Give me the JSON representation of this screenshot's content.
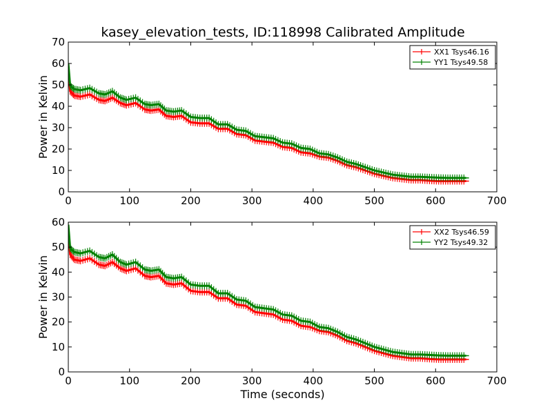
{
  "title": "kasey_elevation_tests, ID:118998 Calibrated Amplitude",
  "chart_data": [
    {
      "type": "line",
      "ylabel": "Power in Kelvin",
      "xlabel": "",
      "xlim": [
        0,
        700
      ],
      "ylim": [
        0,
        70
      ],
      "xticks": [
        "0",
        "100",
        "200",
        "300",
        "400",
        "500",
        "600",
        "700"
      ],
      "yticks": [
        "0",
        "10",
        "20",
        "30",
        "40",
        "50",
        "60",
        "70"
      ],
      "legend_position": "top-right",
      "series": [
        {
          "name": "XX1 Tsys46.16",
          "color": "#ff0000",
          "x": [
            0,
            3,
            10,
            20,
            35,
            50,
            60,
            72,
            85,
            95,
            110,
            125,
            135,
            148,
            160,
            172,
            185,
            200,
            215,
            230,
            245,
            260,
            275,
            290,
            305,
            320,
            335,
            350,
            365,
            380,
            395,
            410,
            425,
            440,
            455,
            470,
            485,
            500,
            515,
            530,
            545,
            560,
            575,
            590,
            605,
            620,
            635,
            650
          ],
          "y": [
            57,
            47,
            45,
            44.5,
            45.5,
            43,
            42.5,
            44,
            41.5,
            40.5,
            41.5,
            38.5,
            38,
            38.5,
            35.5,
            35,
            35.5,
            32.5,
            32,
            32,
            29.5,
            29.5,
            27,
            26.5,
            24,
            23.5,
            23,
            21,
            20.5,
            18.5,
            18,
            16.5,
            16,
            14.5,
            12.5,
            11.5,
            10,
            8.5,
            7.5,
            6.5,
            6,
            5.5,
            5.5,
            5.2,
            5,
            5,
            5,
            5
          ]
        },
        {
          "name": "YY1 Tsys49.58",
          "color": "#008000",
          "x": [
            0,
            3,
            10,
            20,
            35,
            50,
            60,
            72,
            85,
            95,
            110,
            125,
            135,
            148,
            160,
            172,
            185,
            200,
            215,
            230,
            245,
            260,
            275,
            290,
            305,
            320,
            335,
            350,
            365,
            380,
            395,
            410,
            425,
            440,
            455,
            470,
            485,
            500,
            515,
            530,
            545,
            560,
            575,
            590,
            605,
            620,
            635,
            650
          ],
          "y": [
            60,
            49.5,
            48,
            47.5,
            48.5,
            46,
            45.5,
            47,
            44,
            43,
            44,
            41,
            40.5,
            41,
            38,
            37.5,
            38,
            35,
            34.5,
            34.5,
            31.5,
            31.5,
            29,
            28.5,
            26,
            25.5,
            25,
            23,
            22.5,
            20.5,
            20,
            18,
            17.5,
            16,
            14,
            13,
            11.5,
            10,
            9,
            8,
            7.5,
            7,
            7,
            6.8,
            6.6,
            6.5,
            6.5,
            6.5
          ]
        }
      ]
    },
    {
      "type": "line",
      "ylabel": "Power in Kelvin",
      "xlabel": "Time (seconds)",
      "xlim": [
        0,
        700
      ],
      "ylim": [
        0,
        60
      ],
      "xticks": [
        "0",
        "100",
        "200",
        "300",
        "400",
        "500",
        "600",
        "700"
      ],
      "yticks": [
        "0",
        "10",
        "20",
        "30",
        "40",
        "50",
        "60"
      ],
      "legend_position": "top-right",
      "series": [
        {
          "name": "XX2 Tsys46.59",
          "color": "#ff0000",
          "x": [
            0,
            3,
            10,
            20,
            35,
            50,
            60,
            72,
            85,
            95,
            110,
            125,
            135,
            148,
            160,
            172,
            185,
            200,
            215,
            230,
            245,
            260,
            275,
            290,
            305,
            320,
            335,
            350,
            365,
            380,
            395,
            410,
            425,
            440,
            455,
            470,
            485,
            500,
            515,
            530,
            545,
            560,
            575,
            590,
            605,
            620,
            635,
            650
          ],
          "y": [
            56,
            47,
            45,
            44.5,
            45.5,
            43,
            42.5,
            44,
            41.5,
            40.5,
            41.5,
            38.5,
            38,
            38.5,
            35.5,
            35,
            35.5,
            32.5,
            32,
            32,
            29.5,
            29.5,
            27,
            26.5,
            24,
            23.5,
            23,
            21,
            20.5,
            18.5,
            18,
            16.5,
            16,
            14.5,
            12.5,
            11.5,
            10,
            8.5,
            7.5,
            6.5,
            6,
            5.5,
            5.5,
            5.2,
            5,
            5,
            5,
            5
          ]
        },
        {
          "name": "YY2 Tsys49.32",
          "color": "#008000",
          "x": [
            0,
            3,
            10,
            20,
            35,
            50,
            60,
            72,
            85,
            95,
            110,
            125,
            135,
            148,
            160,
            172,
            185,
            200,
            215,
            230,
            245,
            260,
            275,
            290,
            305,
            320,
            335,
            350,
            365,
            380,
            395,
            410,
            425,
            440,
            455,
            470,
            485,
            500,
            515,
            530,
            545,
            560,
            575,
            590,
            605,
            620,
            635,
            650
          ],
          "y": [
            59,
            49.5,
            48,
            47.5,
            48.5,
            46,
            45.5,
            47,
            44,
            43,
            44,
            41,
            40.5,
            41,
            38,
            37.5,
            38,
            35,
            34.5,
            34.5,
            31.5,
            31.5,
            29,
            28.5,
            26,
            25.5,
            25,
            23,
            22.5,
            20.5,
            20,
            18,
            17.5,
            16,
            14,
            13,
            11.5,
            10,
            9,
            8,
            7.5,
            7,
            7,
            6.8,
            6.6,
            6.5,
            6.5,
            6.5
          ]
        }
      ]
    }
  ]
}
